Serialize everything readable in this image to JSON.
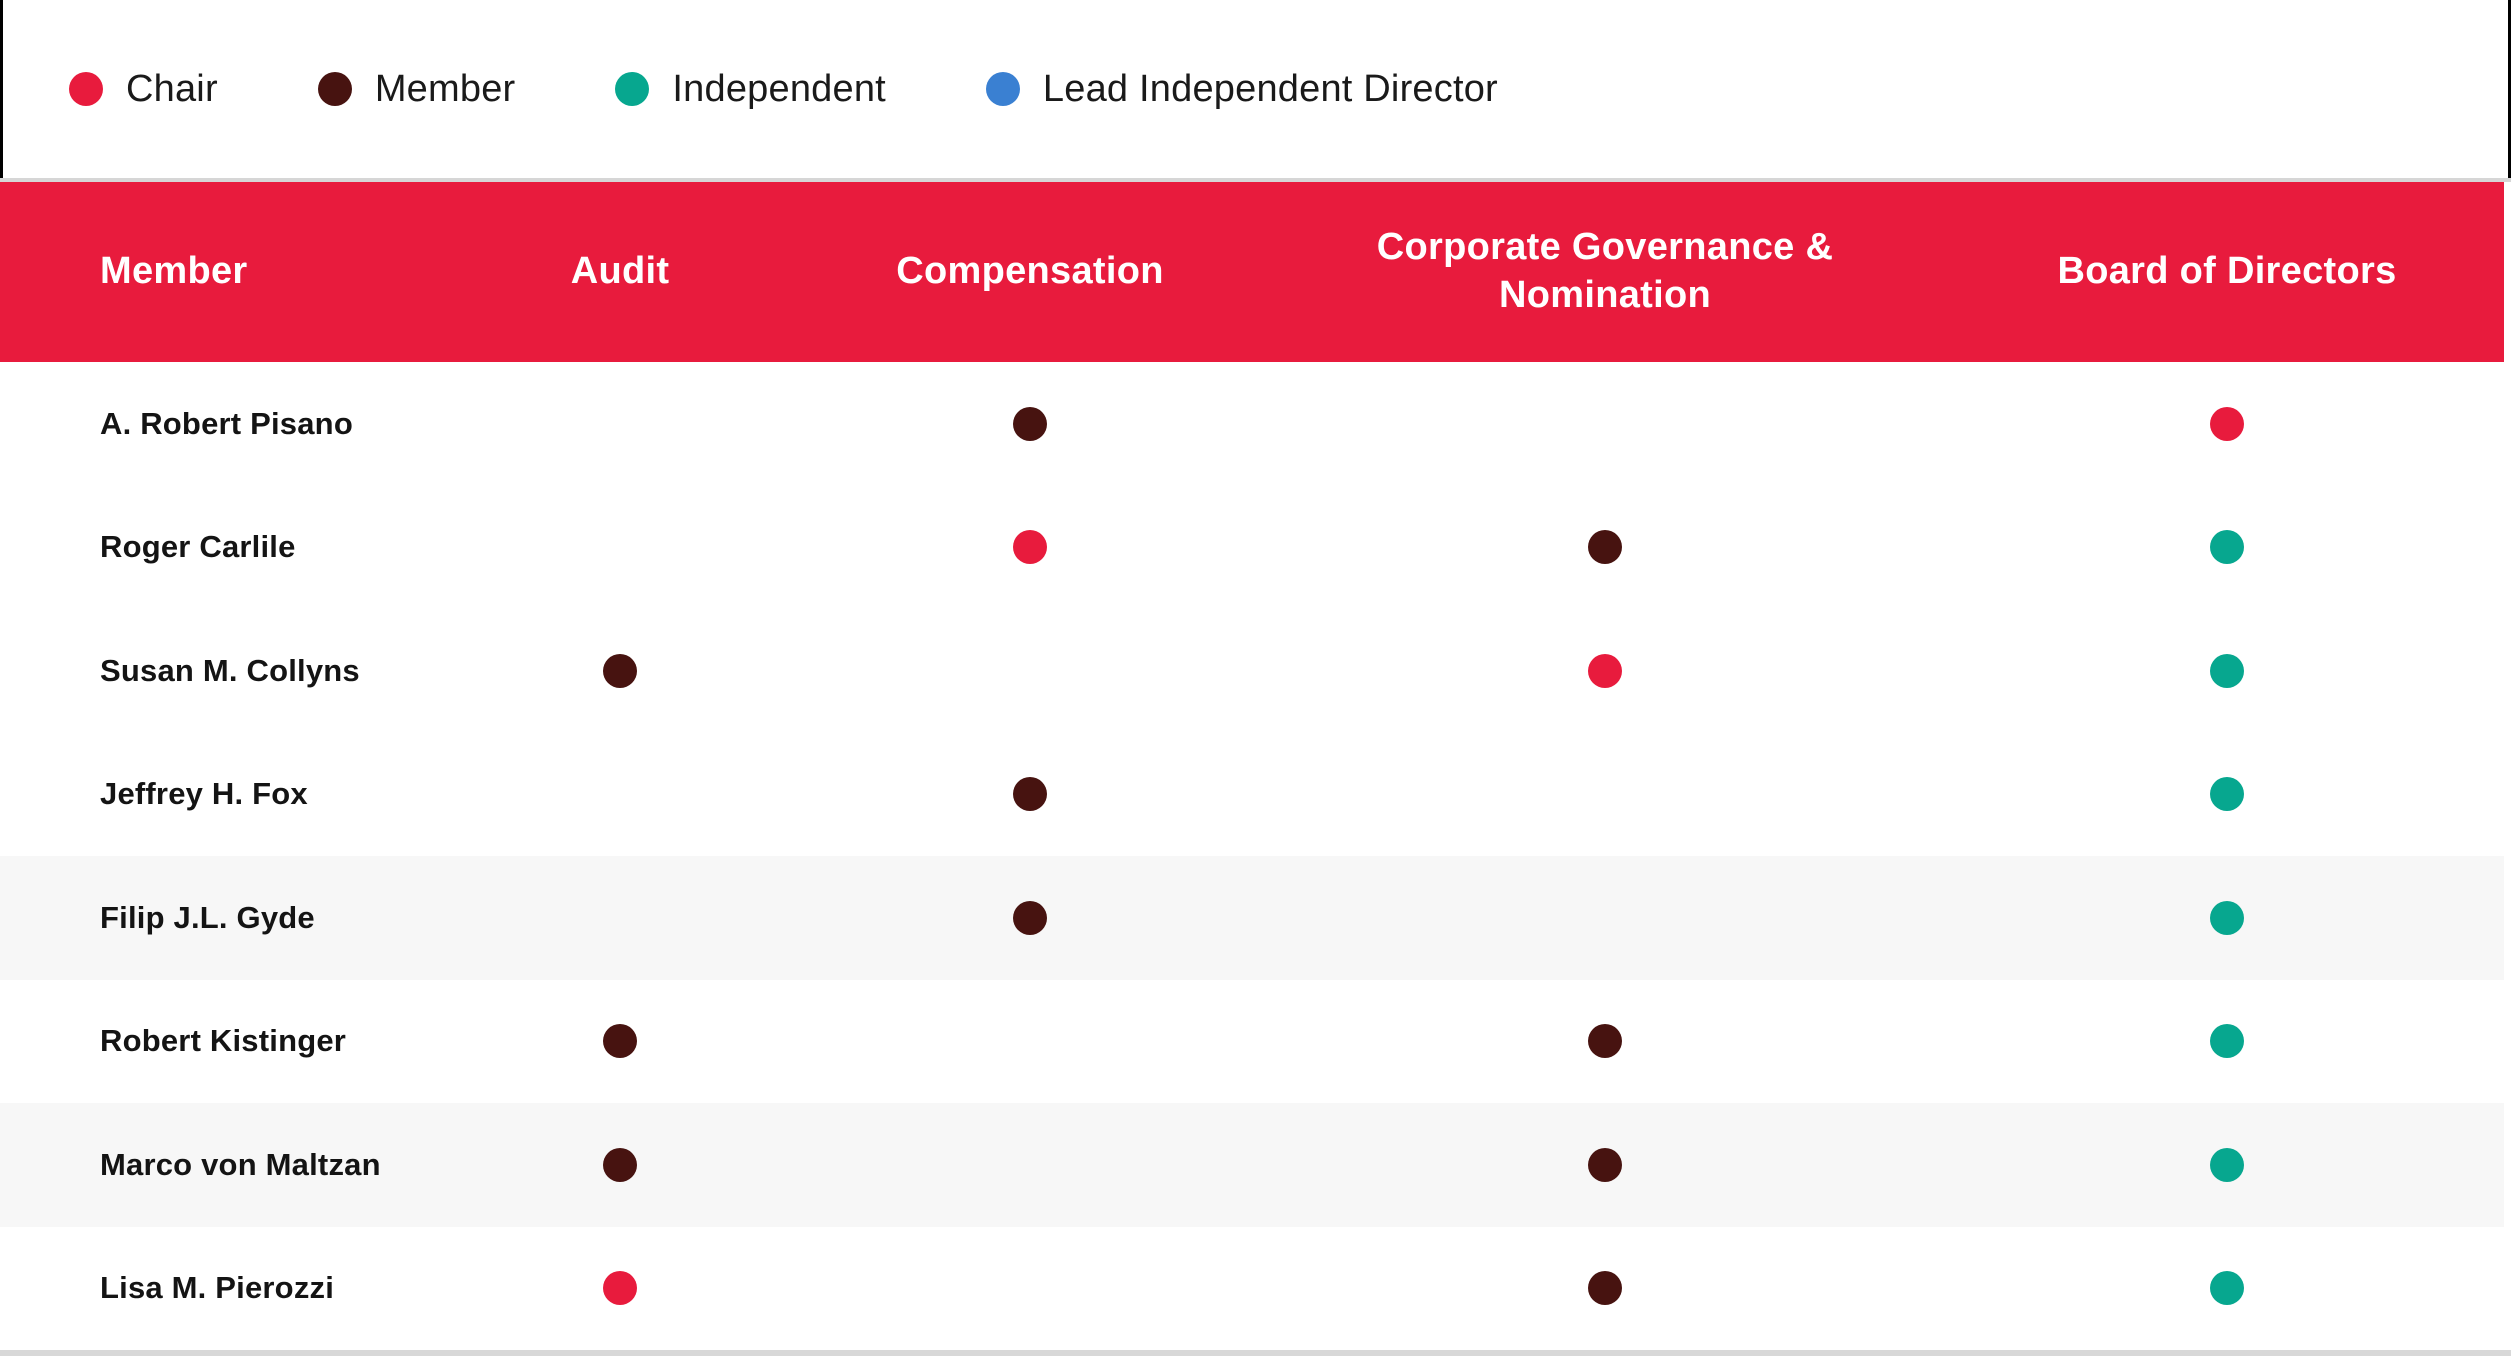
{
  "colors": {
    "header_bg": "#E81B3D",
    "chair": "#E81B3D",
    "member": "#471310",
    "independent": "#07A78F",
    "lead_independent": "#3A80D2",
    "row_stripe": "#F7F7F7",
    "divider": "#D6D6D6",
    "bottom_border": "#D8D8D8",
    "name_text": "#141414",
    "header_text": "#FFFFFF",
    "legend_text": "#1A1A1A",
    "border_black": "#000000"
  },
  "chart_data": {
    "type": "table",
    "legend": [
      {
        "label": "Chair",
        "role": "chair",
        "color": "#E81B3D"
      },
      {
        "label": "Member",
        "role": "member",
        "color": "#471310"
      },
      {
        "label": "Independent",
        "role": "independent",
        "color": "#07A78F"
      },
      {
        "label": "Lead Independent Director",
        "role": "lead",
        "color": "#3A80D2"
      }
    ],
    "columns": [
      "Member",
      "Audit",
      "Compensation",
      "Corporate Governance & Nomination",
      "Board of Directors"
    ],
    "rows": [
      {
        "member": "A. Robert Pisano",
        "audit": null,
        "compensation": "member",
        "governance": null,
        "board": "chair",
        "striped": false
      },
      {
        "member": "Roger Carlile",
        "audit": null,
        "compensation": "chair",
        "governance": "member",
        "board": "independent",
        "striped": false
      },
      {
        "member": "Susan M. Collyns",
        "audit": "member",
        "compensation": null,
        "governance": "chair",
        "board": "independent",
        "striped": false
      },
      {
        "member": "Jeffrey H. Fox",
        "audit": null,
        "compensation": "member",
        "governance": null,
        "board": "independent",
        "striped": false
      },
      {
        "member": "Filip J.L. Gyde",
        "audit": null,
        "compensation": "member",
        "governance": null,
        "board": "independent",
        "striped": true
      },
      {
        "member": "Robert Kistinger",
        "audit": "member",
        "compensation": null,
        "governance": "member",
        "board": "independent",
        "striped": false
      },
      {
        "member": "Marco von Maltzan",
        "audit": "member",
        "compensation": null,
        "governance": "member",
        "board": "independent",
        "striped": true
      },
      {
        "member": "Lisa M. Pierozzi",
        "audit": "chair",
        "compensation": null,
        "governance": "member",
        "board": "independent",
        "striped": false
      }
    ]
  }
}
